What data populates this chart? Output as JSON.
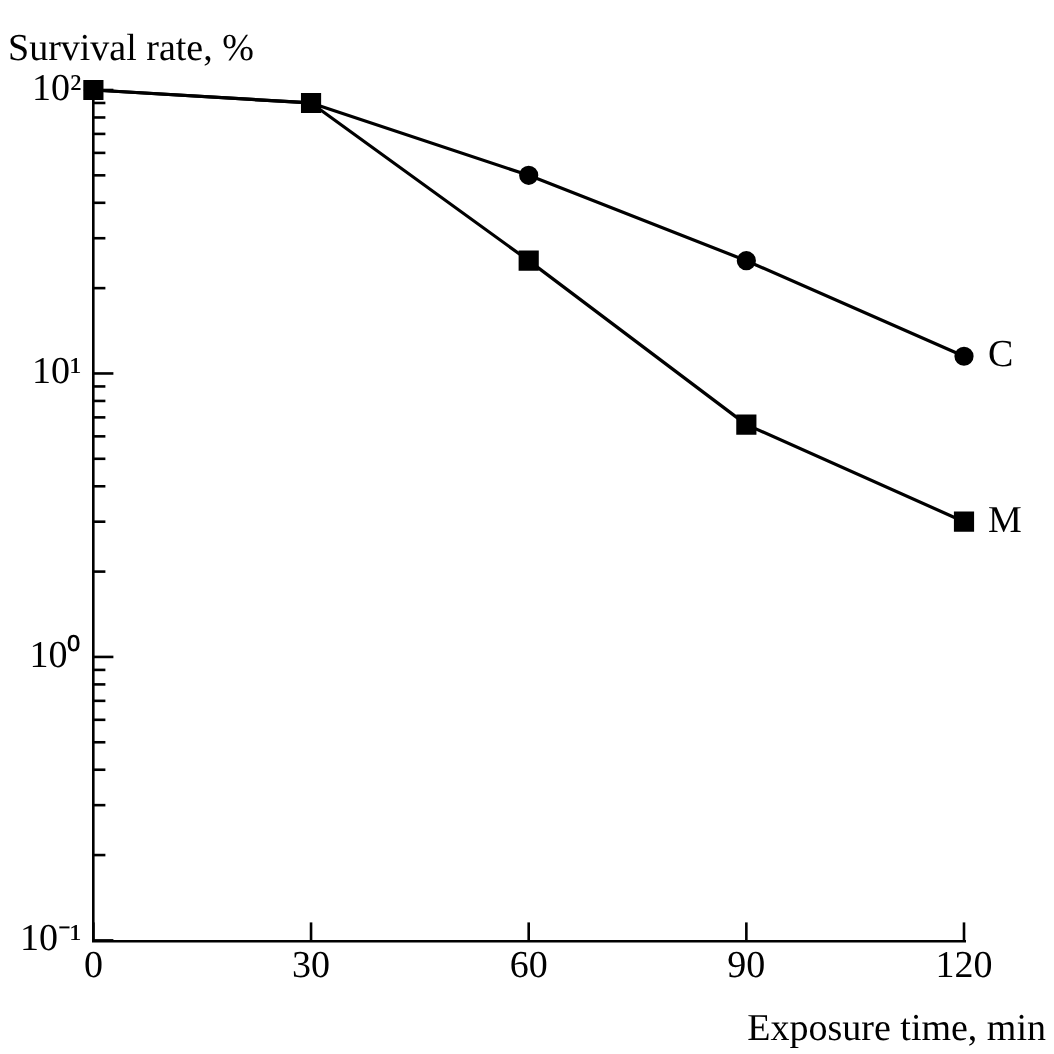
{
  "chart_data": {
    "type": "line",
    "xlabel": "Exposure time, min",
    "ylabel": "Survival rate, %",
    "log": "y",
    "grid": false,
    "legend": false,
    "x": [
      0,
      30,
      60,
      90,
      120
    ],
    "series": [
      {
        "name": "C",
        "color": "#000000",
        "marker": "circle",
        "values": [
          100,
          90,
          50,
          25,
          11.5
        ]
      },
      {
        "name": "M",
        "color": "#000000",
        "marker": "square",
        "values": [
          100,
          90,
          25,
          6.6,
          3.0
        ]
      }
    ],
    "xlim": [
      0,
      120
    ],
    "xticks": [
      0,
      30,
      60,
      90,
      120
    ],
    "ylim": [
      0.1,
      100
    ],
    "yticks": [
      {
        "value": 0.1,
        "label": "10⁻¹"
      },
      {
        "value": 0.2,
        "label": null
      },
      {
        "value": 0.3,
        "label": null
      },
      {
        "value": 0.4,
        "label": null
      },
      {
        "value": 0.5,
        "label": null
      },
      {
        "value": 0.6,
        "label": null
      },
      {
        "value": 0.7,
        "label": null
      },
      {
        "value": 0.8,
        "label": null
      },
      {
        "value": 0.9,
        "label": null
      },
      {
        "value": 1,
        "label": "10⁰"
      },
      {
        "value": 2,
        "label": null
      },
      {
        "value": 3,
        "label": null
      },
      {
        "value": 4,
        "label": null
      },
      {
        "value": 5,
        "label": null
      },
      {
        "value": 6,
        "label": null
      },
      {
        "value": 7,
        "label": null
      },
      {
        "value": 8,
        "label": null
      },
      {
        "value": 9,
        "label": null
      },
      {
        "value": 10,
        "label": "10¹"
      },
      {
        "value": 20,
        "label": null
      },
      {
        "value": 30,
        "label": null
      },
      {
        "value": 40,
        "label": null
      },
      {
        "value": 50,
        "label": null
      },
      {
        "value": 60,
        "label": null
      },
      {
        "value": 70,
        "label": null
      },
      {
        "value": 80,
        "label": null
      },
      {
        "value": 90,
        "label": null
      },
      {
        "value": 100,
        "label": "10²"
      }
    ]
  }
}
